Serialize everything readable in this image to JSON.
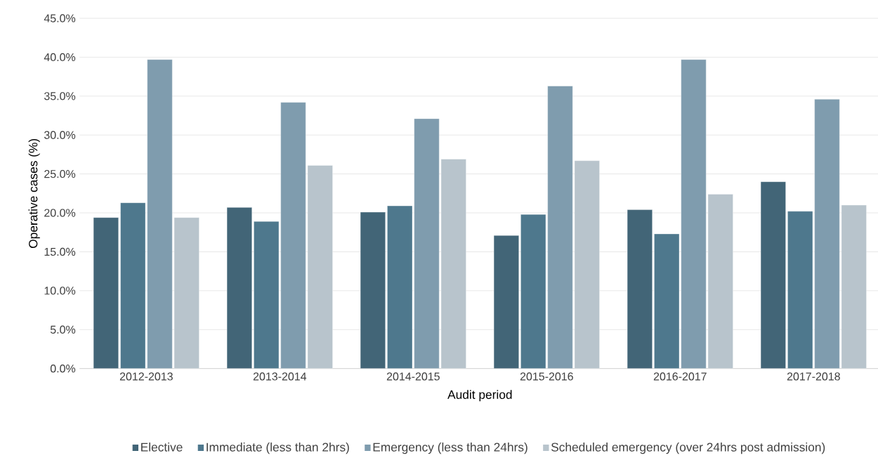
{
  "chart_data": {
    "type": "bar",
    "xlabel": "Audit period",
    "ylabel": "Operative cases (%)",
    "categories": [
      "2012-2013",
      "2013-2014",
      "2014-2015",
      "2015-2016",
      "2016-2017",
      "2017-2018"
    ],
    "series": [
      {
        "name": "Elective",
        "color": "#426577",
        "values": [
          19.4,
          20.7,
          20.1,
          17.1,
          20.4,
          24.0
        ]
      },
      {
        "name": "Immediate (less than 2hrs)",
        "color": "#4e788d",
        "values": [
          21.3,
          18.9,
          20.9,
          19.8,
          17.3,
          20.2
        ]
      },
      {
        "name": "Emergency (less than 24hrs)",
        "color": "#7f9cae",
        "values": [
          39.7,
          34.2,
          32.1,
          36.3,
          39.7,
          34.6
        ]
      },
      {
        "name": "Scheduled emergency (over 24hrs post admission)",
        "color": "#b8c4cc",
        "values": [
          19.4,
          26.1,
          26.9,
          26.7,
          22.4,
          21.0
        ]
      }
    ],
    "ylim": [
      0,
      45
    ],
    "yticks": [
      {
        "value": 0,
        "label": "0.0%"
      },
      {
        "value": 5,
        "label": "5.0%"
      },
      {
        "value": 10,
        "label": "10.0%"
      },
      {
        "value": 15,
        "label": "15.0%"
      },
      {
        "value": 20,
        "label": "20.0%"
      },
      {
        "value": 25,
        "label": "25.0%"
      },
      {
        "value": 30,
        "label": "30.0%"
      },
      {
        "value": 35,
        "label": "35.0%"
      },
      {
        "value": 40,
        "label": "40.0%"
      },
      {
        "value": 45,
        "label": "45.0%"
      }
    ],
    "grid": "y",
    "legend": "bottom"
  }
}
